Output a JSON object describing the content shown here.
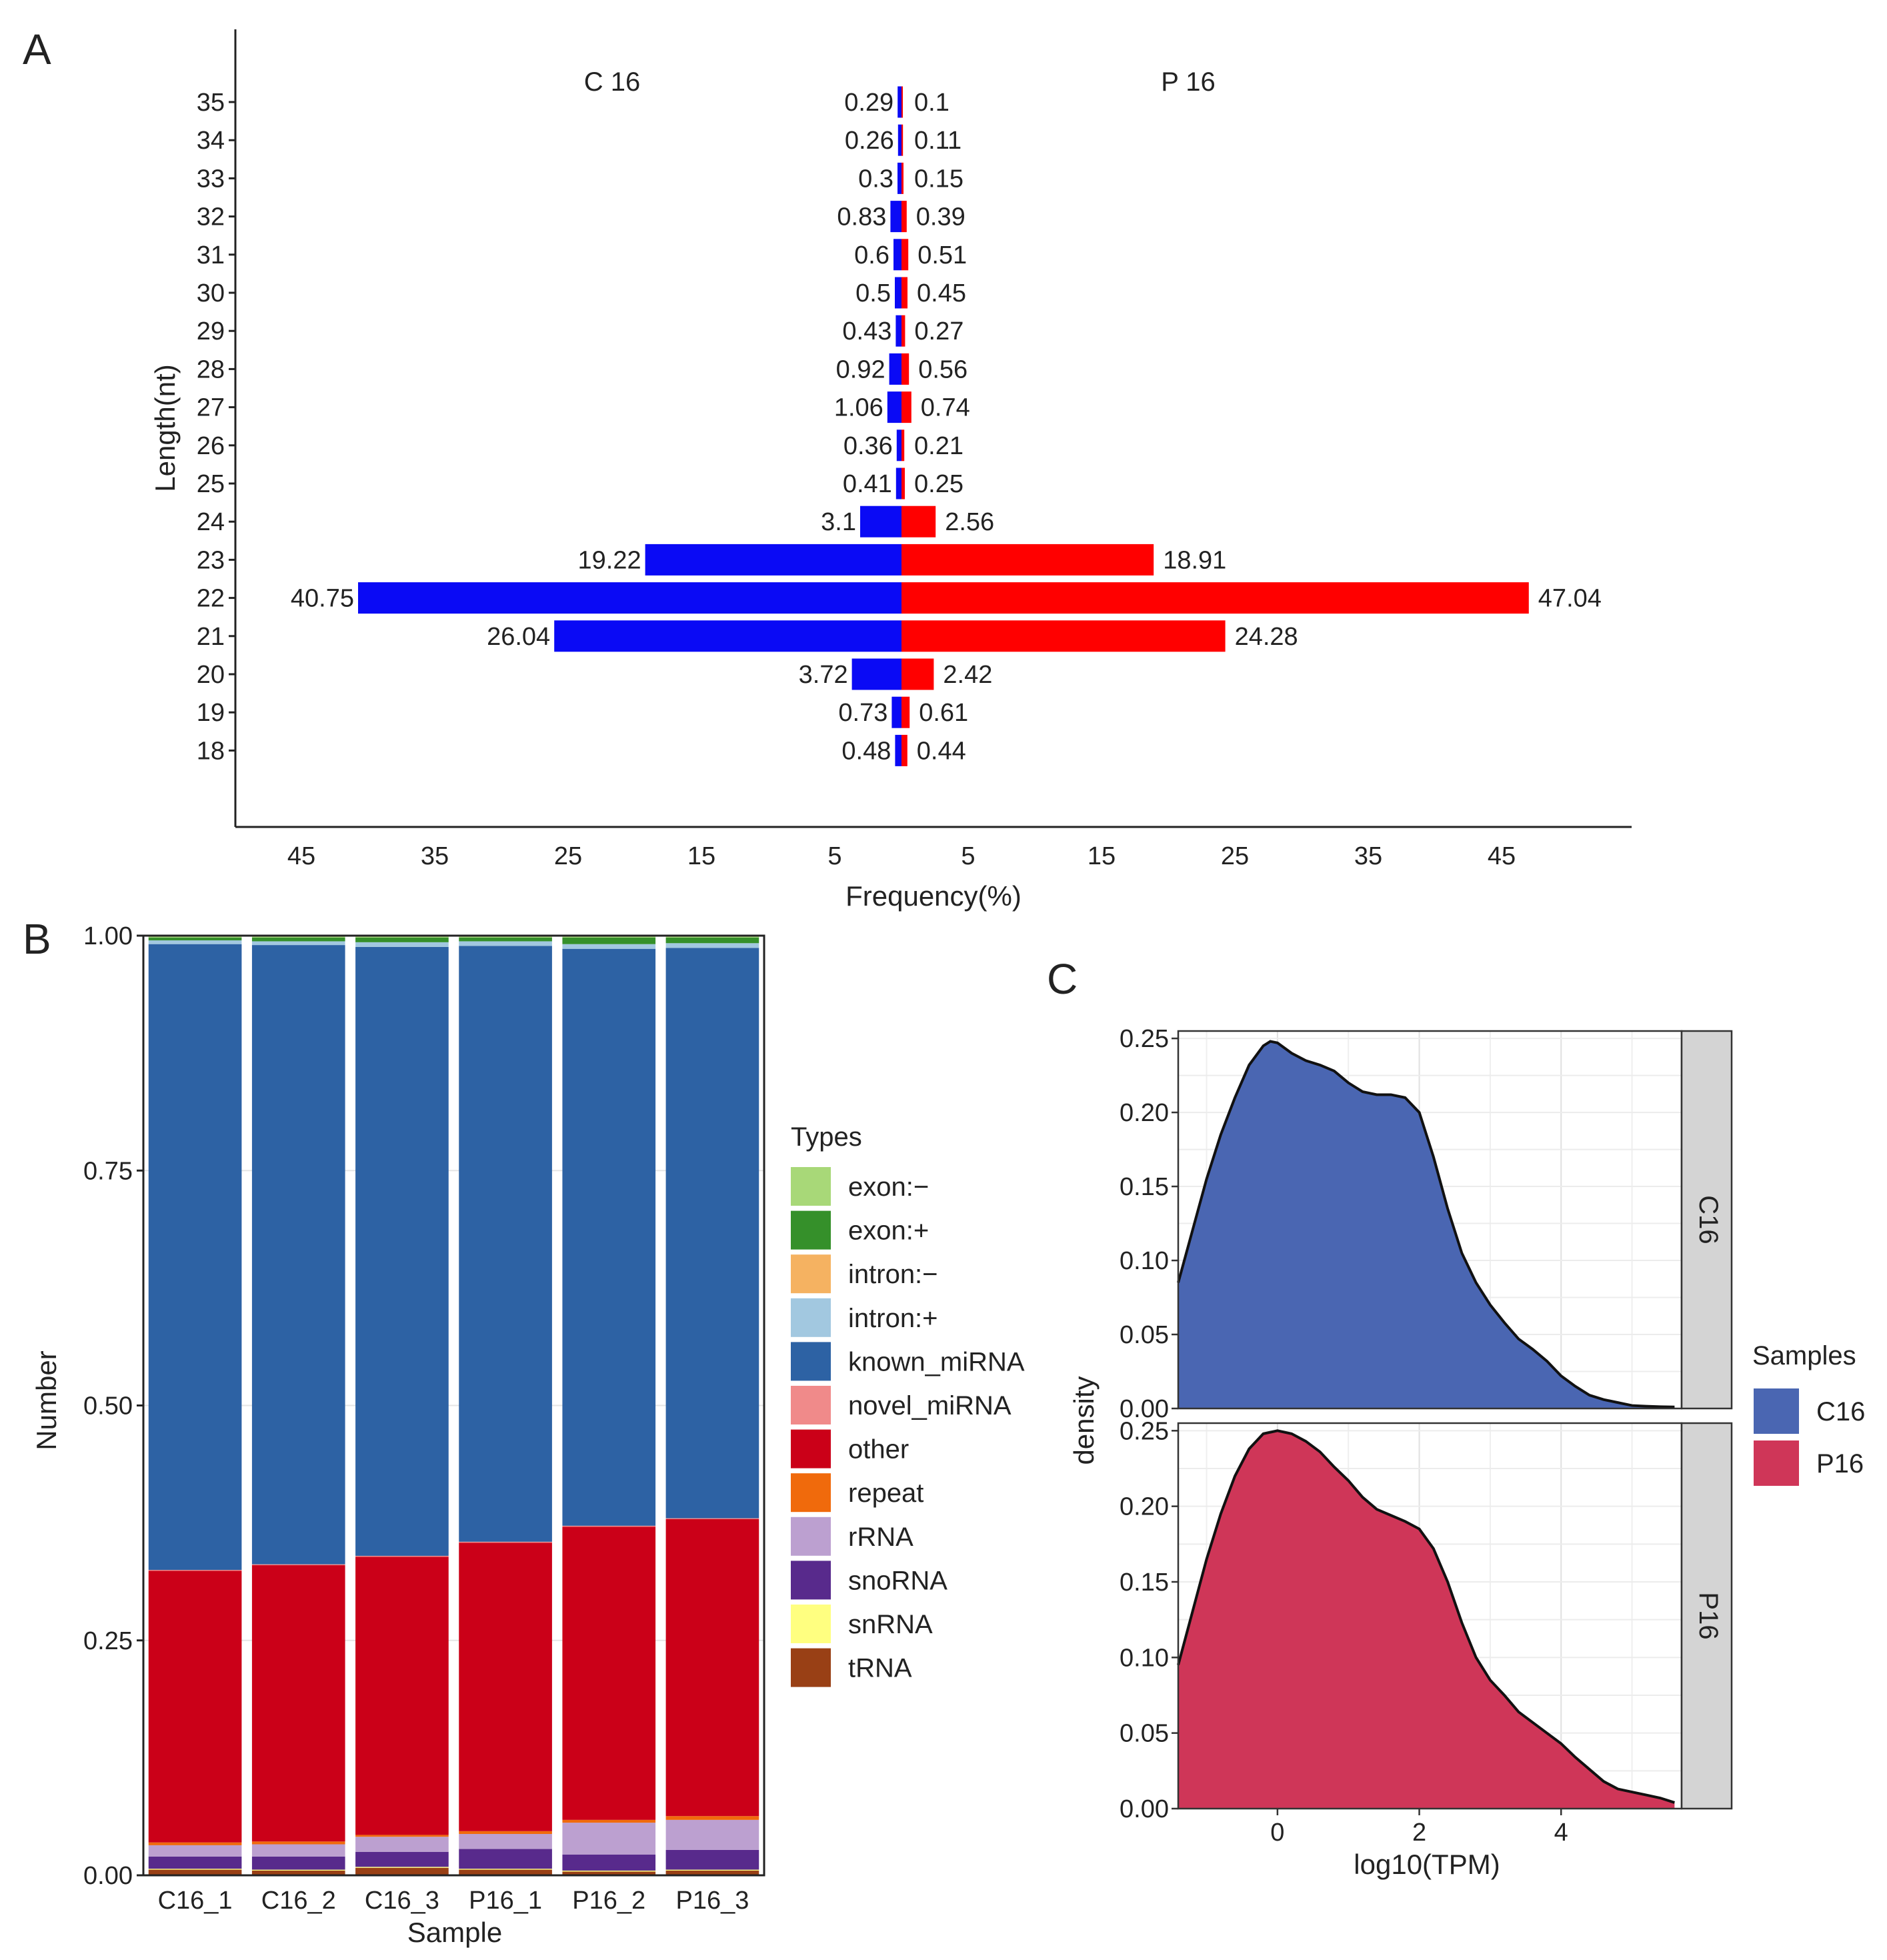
{
  "panel_labels": [
    "A",
    "B",
    "C"
  ],
  "chart_data": [
    {
      "type": "bar",
      "orientation": "horizontal-diverging",
      "panel": "A",
      "categories": [
        "35",
        "34",
        "33",
        "32",
        "31",
        "30",
        "29",
        "28",
        "27",
        "26",
        "25",
        "24",
        "23",
        "22",
        "21",
        "20",
        "19",
        "18"
      ],
      "series": [
        {
          "name": "C 16",
          "color": "#0a0af5",
          "values": [
            0.29,
            0.26,
            0.3,
            0.83,
            0.6,
            0.5,
            0.43,
            0.92,
            1.06,
            0.36,
            0.41,
            3.1,
            19.22,
            40.75,
            26.04,
            3.72,
            0.73,
            0.48
          ],
          "value_labels": [
            "0.29",
            "0.26",
            "0.3",
            "0.83",
            "0.6",
            "0.5",
            "0.43",
            "0.92",
            "1.06",
            "0.36",
            "0.41",
            "3.1",
            "19.22",
            "40.75",
            "26.04",
            "3.72",
            "0.73",
            "0.48"
          ]
        },
        {
          "name": "P 16",
          "color": "#ff0000",
          "values": [
            0.1,
            0.11,
            0.15,
            0.39,
            0.51,
            0.45,
            0.27,
            0.56,
            0.74,
            0.21,
            0.25,
            2.56,
            18.91,
            47.04,
            24.28,
            2.42,
            0.61,
            0.44
          ],
          "value_labels": [
            "0.1",
            "0.11",
            "0.15",
            "0.39",
            "0.51",
            "0.45",
            "0.27",
            "0.56",
            "0.74",
            "0.21",
            "0.25",
            "2.56",
            "18.91",
            "47.04",
            "24.28",
            "2.42",
            "0.61",
            "0.44"
          ]
        }
      ],
      "xlabel": "Frequency(%)",
      "ylabel": "Length(nt)",
      "xticks_left": [
        "45",
        "35",
        "25",
        "15",
        "5"
      ],
      "xticks_right": [
        "5",
        "15",
        "25",
        "35",
        "45"
      ],
      "xlim": [
        -50,
        55
      ]
    },
    {
      "type": "bar",
      "stacked": true,
      "panel": "B",
      "categories": [
        "C16_1",
        "C16_2",
        "C16_3",
        "P16_1",
        "P16_2",
        "P16_3"
      ],
      "xlabel": "Sample",
      "ylabel": "Number",
      "ylim": [
        0,
        1
      ],
      "yticks": [
        "0.00",
        "0.25",
        "0.50",
        "0.75",
        "1.00"
      ],
      "legend_title": "Types",
      "series": [
        {
          "name": "tRNA",
          "color": "#994015",
          "values": [
            0.006,
            0.005,
            0.008,
            0.006,
            0.004,
            0.005
          ]
        },
        {
          "name": "snRNA",
          "color": "#ffff80",
          "values": [
            0.001,
            0.001,
            0.001,
            0.001,
            0.001,
            0.001
          ]
        },
        {
          "name": "snoRNA",
          "color": "#582a8c",
          "values": [
            0.013,
            0.014,
            0.016,
            0.021,
            0.017,
            0.021
          ]
        },
        {
          "name": "rRNA",
          "color": "#bca0d0",
          "values": [
            0.012,
            0.013,
            0.016,
            0.016,
            0.034,
            0.032
          ]
        },
        {
          "name": "repeat",
          "color": "#f06a0c",
          "values": [
            0.003,
            0.003,
            0.002,
            0.003,
            0.003,
            0.004
          ]
        },
        {
          "name": "other",
          "color": "#cb0018",
          "values": [
            0.289,
            0.294,
            0.296,
            0.307,
            0.312,
            0.316
          ]
        },
        {
          "name": "novel_miRNA",
          "color": "#f08a8a",
          "values": [
            0.001,
            0.001,
            0.001,
            0.001,
            0.001,
            0.001
          ]
        },
        {
          "name": "known_miRNA",
          "color": "#2d62a4",
          "values": [
            0.666,
            0.659,
            0.648,
            0.634,
            0.614,
            0.607
          ]
        },
        {
          "name": "intron:+",
          "color": "#a2c8e0",
          "values": [
            0.004,
            0.004,
            0.005,
            0.005,
            0.005,
            0.005
          ]
        },
        {
          "name": "intron:-",
          "color": "#f5b261",
          "values": [
            0.0,
            0.0,
            0.0,
            0.0,
            0.0,
            0.0
          ]
        },
        {
          "name": "exon:+",
          "color": "#35902a",
          "values": [
            0.003,
            0.004,
            0.005,
            0.004,
            0.007,
            0.006
          ]
        },
        {
          "name": "exon:-",
          "color": "#a8d878",
          "values": [
            0.002,
            0.002,
            0.002,
            0.002,
            0.002,
            0.002
          ]
        }
      ],
      "legend_order": [
        "exon:−",
        "exon:+",
        "intron:−",
        "intron:+",
        "known_miRNA",
        "novel_miRNA",
        "other",
        "repeat",
        "rRNA",
        "snoRNA",
        "snRNA",
        "tRNA"
      ]
    },
    {
      "type": "area",
      "subtype": "density",
      "panel": "C",
      "xlabel": "log10(TPM)",
      "ylabel": "density",
      "xlim": [
        -1.4,
        5.7
      ],
      "ylim": [
        0,
        0.255
      ],
      "xticks": [
        "0",
        "2",
        "4"
      ],
      "yticks": [
        "0.00",
        "0.05",
        "0.10",
        "0.15",
        "0.20",
        "0.25"
      ],
      "legend_title": "Samples",
      "series": [
        {
          "name": "C16",
          "color": "#4a66b2",
          "x": [
            -1.4,
            -1.2,
            -1.0,
            -0.8,
            -0.6,
            -0.4,
            -0.2,
            -0.1,
            0,
            0.2,
            0.4,
            0.6,
            0.8,
            1.0,
            1.2,
            1.4,
            1.6,
            1.8,
            2.0,
            2.2,
            2.4,
            2.6,
            2.8,
            3.0,
            3.2,
            3.4,
            3.6,
            3.8,
            4.0,
            4.2,
            4.4,
            4.6,
            4.8,
            5.0,
            5.2,
            5.4,
            5.6
          ],
          "y": [
            0.085,
            0.12,
            0.155,
            0.185,
            0.21,
            0.232,
            0.245,
            0.248,
            0.247,
            0.24,
            0.235,
            0.232,
            0.228,
            0.22,
            0.214,
            0.212,
            0.212,
            0.21,
            0.2,
            0.17,
            0.135,
            0.105,
            0.085,
            0.07,
            0.058,
            0.047,
            0.04,
            0.032,
            0.022,
            0.015,
            0.009,
            0.006,
            0.004,
            0.002,
            0.0015,
            0.0012,
            0.001
          ]
        },
        {
          "name": "P16",
          "color": "#cf3658",
          "x": [
            -1.4,
            -1.2,
            -1.0,
            -0.8,
            -0.6,
            -0.4,
            -0.2,
            0,
            0.2,
            0.4,
            0.6,
            0.8,
            1.0,
            1.2,
            1.4,
            1.6,
            1.8,
            2.0,
            2.2,
            2.4,
            2.6,
            2.8,
            3.0,
            3.2,
            3.4,
            3.6,
            3.8,
            4.0,
            4.2,
            4.4,
            4.6,
            4.8,
            5.0,
            5.2,
            5.4,
            5.6
          ],
          "y": [
            0.095,
            0.13,
            0.165,
            0.195,
            0.22,
            0.238,
            0.248,
            0.25,
            0.248,
            0.243,
            0.236,
            0.226,
            0.217,
            0.206,
            0.198,
            0.194,
            0.19,
            0.185,
            0.172,
            0.15,
            0.123,
            0.1,
            0.085,
            0.075,
            0.064,
            0.057,
            0.05,
            0.043,
            0.034,
            0.026,
            0.018,
            0.013,
            0.011,
            0.009,
            0.007,
            0.004
          ]
        }
      ]
    }
  ]
}
